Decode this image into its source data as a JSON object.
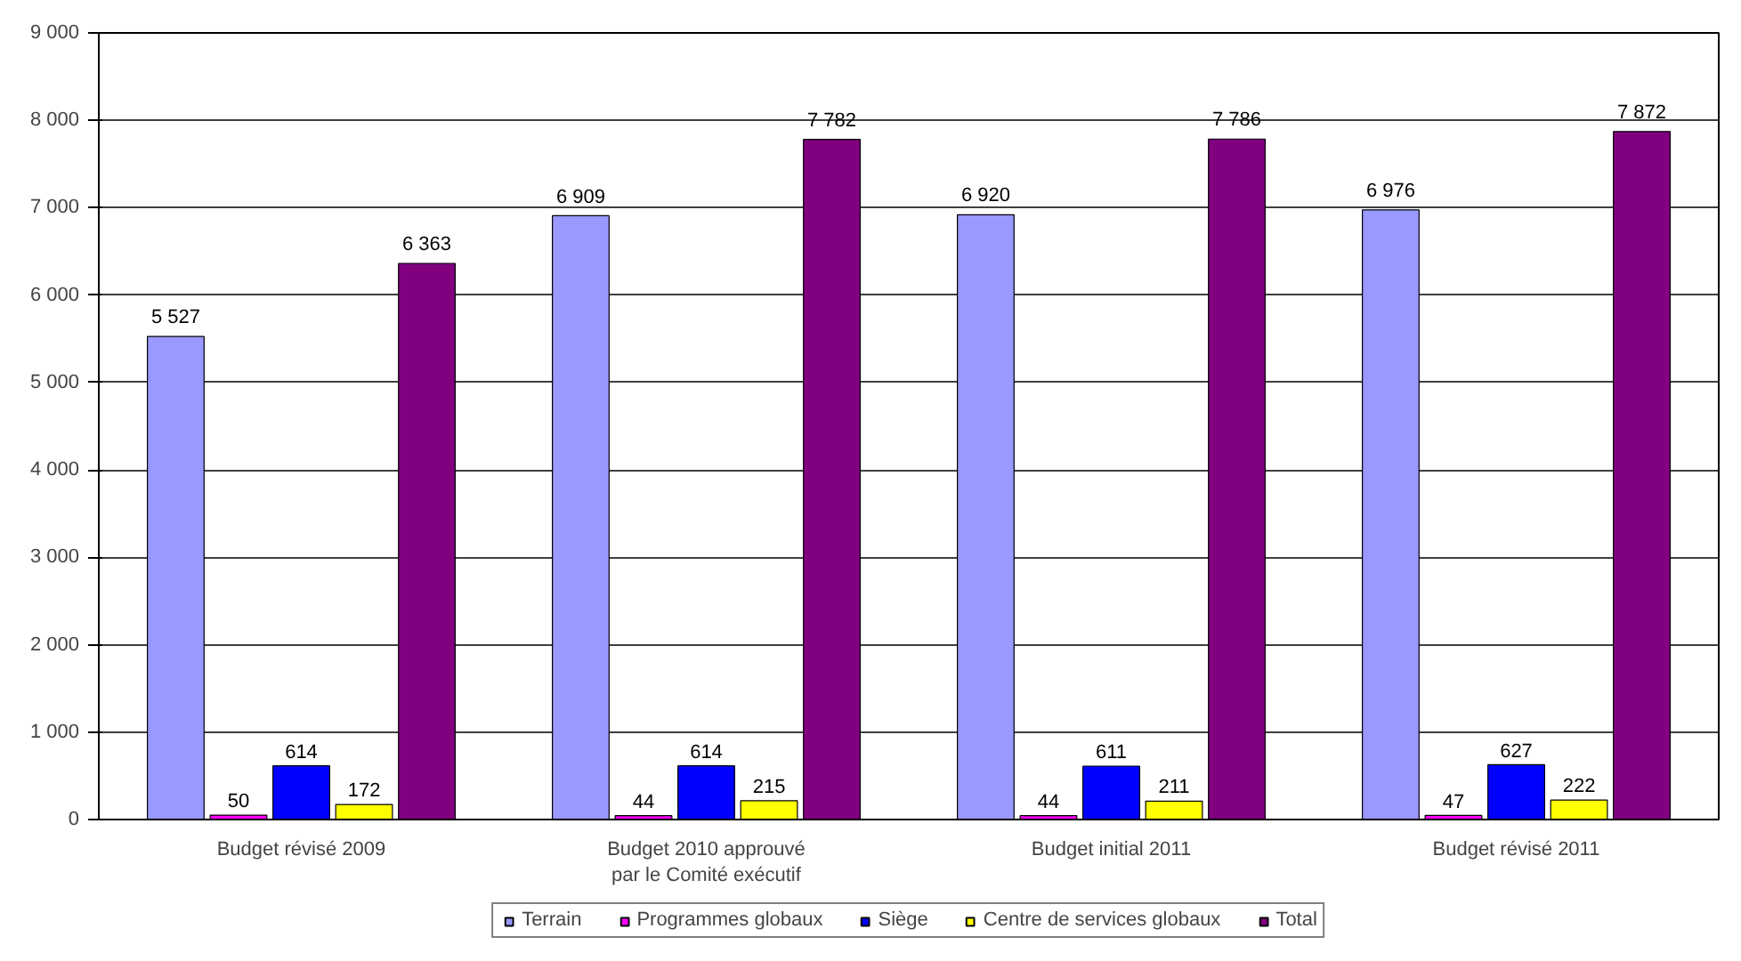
{
  "chart_data": {
    "type": "bar",
    "categories": [
      "Budget révisé 2009",
      "Budget 2010 approuvé\npar le Comité exécutif",
      "Budget initial 2011",
      "Budget révisé 2011"
    ],
    "series": [
      {
        "name": "Terrain",
        "color": "#9999ff",
        "values": [
          5527,
          6909,
          6920,
          6976
        ]
      },
      {
        "name": "Programmes globaux",
        "color": "#ff00ff",
        "values": [
          50,
          44,
          44,
          47
        ]
      },
      {
        "name": "Siège",
        "color": "#0000ff",
        "values": [
          614,
          614,
          611,
          627
        ]
      },
      {
        "name": "Centre de services globaux",
        "color": "#ffff00",
        "values": [
          172,
          215,
          211,
          222
        ]
      },
      {
        "name": "Total",
        "color": "#800080",
        "values": [
          6363,
          7782,
          7786,
          7872
        ]
      }
    ],
    "ylim": [
      0,
      9000
    ],
    "yticks": [
      0,
      {
        "value": 1000,
        "label": "1 000"
      },
      {
        "value": 2000,
        "label": "2 000"
      },
      {
        "value": 3000,
        "label": "3 000"
      },
      {
        "value": 4000,
        "label": "4 000"
      },
      {
        "value": 5000,
        "label": "5 000"
      },
      {
        "value": 6000,
        "label": "6 000"
      },
      {
        "value": 7000,
        "label": "7 000"
      },
      {
        "value": 8000,
        "label": "8 000"
      },
      {
        "value": 9000,
        "label": "9 000"
      }
    ],
    "grid": "y",
    "legend": "bottom",
    "data_labels": true
  }
}
